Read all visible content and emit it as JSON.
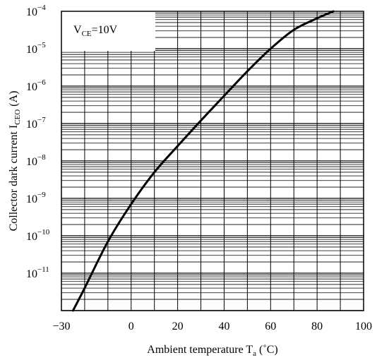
{
  "chart_data": {
    "type": "line",
    "y_scale": "log",
    "xlim": [
      -30,
      100
    ],
    "ylim": [
      1e-12,
      0.0001
    ],
    "x_ticks": [
      -30,
      0,
      20,
      40,
      60,
      80,
      100
    ],
    "x_tick_labels": [
      "−30",
      "0",
      "20",
      "40",
      "60",
      "80",
      "100"
    ],
    "y_ticks": [
      {
        "exp": -11,
        "base": "10",
        "sup": "−11"
      },
      {
        "exp": -10,
        "base": "10",
        "sup": "−10"
      },
      {
        "exp": -9,
        "base": "10",
        "sup": "−9"
      },
      {
        "exp": -8,
        "base": "10",
        "sup": "−8"
      },
      {
        "exp": -7,
        "base": "10",
        "sup": "−7"
      },
      {
        "exp": -6,
        "base": "10",
        "sup": "−6"
      },
      {
        "exp": -5,
        "base": "10",
        "sup": "−5"
      },
      {
        "exp": -4,
        "base": "10",
        "sup": "−4"
      }
    ],
    "xlabel": {
      "main": "Ambient temperature T",
      "sub": "a",
      "unit": " (˚C)"
    },
    "ylabel": {
      "main": "Collector dark current I",
      "sub": "CEO",
      "unit": " (A)"
    },
    "annotation": {
      "main": "V",
      "sub": "CE",
      "rest": "=10V"
    },
    "grid": true,
    "series": [
      {
        "x": [
          -25,
          -20,
          -10,
          0,
          10,
          20,
          30,
          40,
          50,
          60,
          70,
          80,
          87
        ],
        "y": [
          1e-12,
          4e-12,
          7e-11,
          7e-10,
          5e-09,
          2.5e-08,
          1.2e-07,
          5.5e-07,
          2.5e-06,
          1e-05,
          3.2e-05,
          6.5e-05,
          0.0001
        ]
      }
    ]
  }
}
